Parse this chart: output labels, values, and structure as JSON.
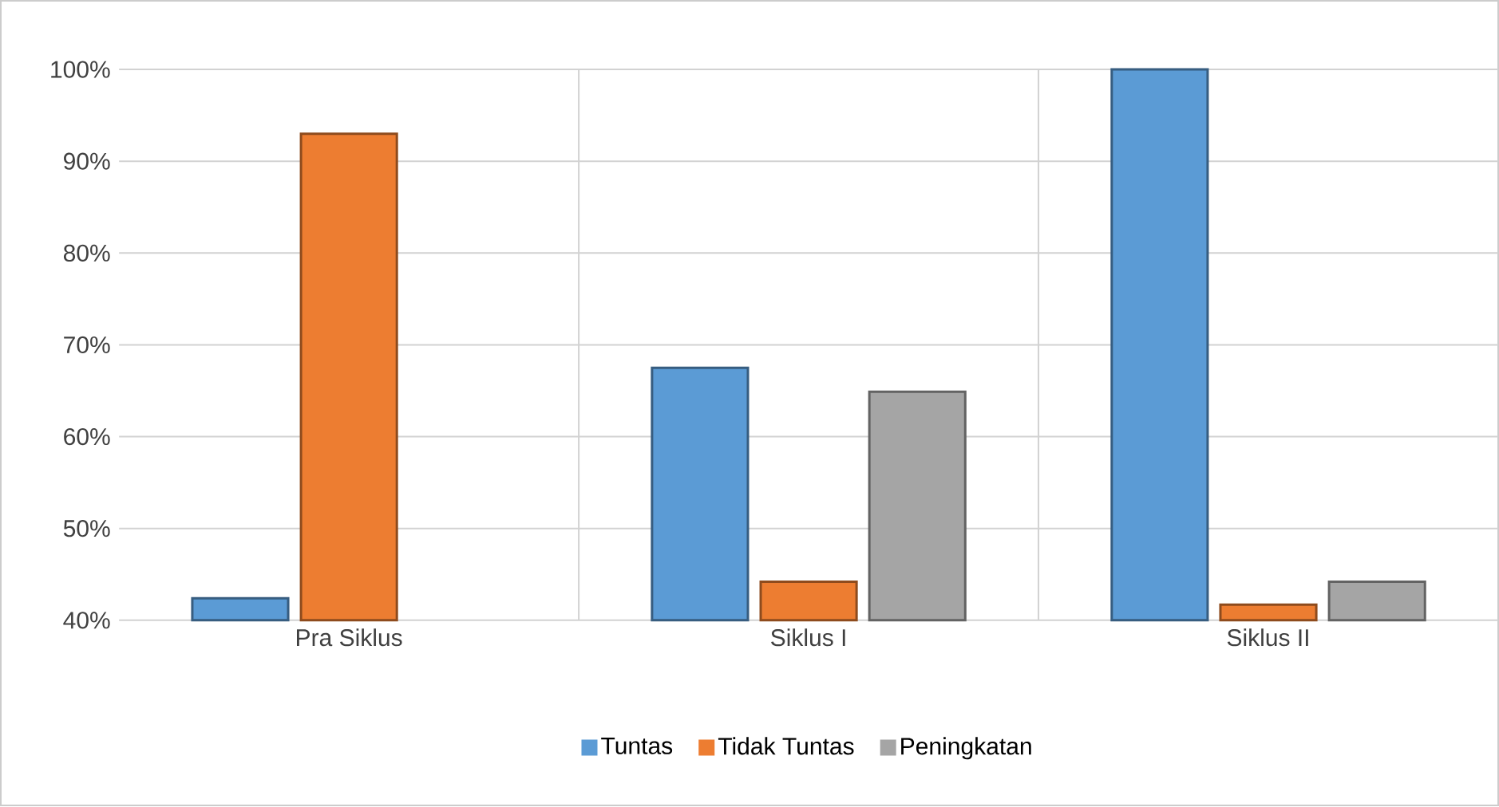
{
  "chart_data": {
    "type": "bar",
    "categories": [
      "Pra Siklus",
      "Siklus I",
      "Siklus II"
    ],
    "series": [
      {
        "name": "Tuntas",
        "color": "#5b9bd5",
        "values": [
          42.4,
          67.5,
          100
        ]
      },
      {
        "name": "Tidak Tuntas",
        "color": "#ed7d31",
        "values": [
          93,
          44.2,
          41.7
        ]
      },
      {
        "name": "Peningkatan",
        "color": "#a5a5a5",
        "values": [
          null,
          64.9,
          44.2
        ]
      }
    ],
    "ylim": [
      40,
      100
    ],
    "yticks": [
      {
        "value": 40,
        "label": "40%"
      },
      {
        "value": 50,
        "label": "50%"
      },
      {
        "value": 60,
        "label": "60%"
      },
      {
        "value": 70,
        "label": "70%"
      },
      {
        "value": 80,
        "label": "80%"
      },
      {
        "value": 90,
        "label": "90%"
      },
      {
        "value": 100,
        "label": "100%"
      }
    ],
    "grid": true,
    "legend": "bottom"
  }
}
